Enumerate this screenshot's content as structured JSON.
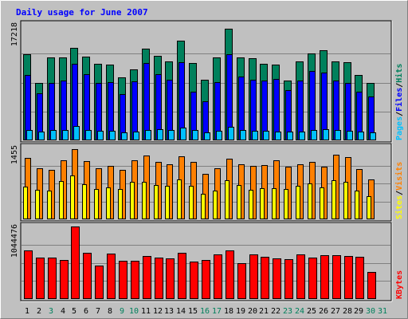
{
  "chart_data": {
    "type": "bar",
    "title": "Daily usage for June 2007",
    "categories": [
      "1",
      "2",
      "3",
      "4",
      "5",
      "6",
      "7",
      "8",
      "9",
      "10",
      "11",
      "12",
      "13",
      "14",
      "15",
      "16",
      "17",
      "18",
      "19",
      "20",
      "21",
      "22",
      "23",
      "24",
      "25",
      "26",
      "27",
      "28",
      "29",
      "30",
      "31"
    ],
    "weekend_days": [
      "3",
      "9",
      "10",
      "16",
      "17",
      "23",
      "24",
      "30",
      "31"
    ],
    "panels": [
      {
        "name": "hits-files-pages",
        "ymax_label": "17218",
        "ylim": [
          0,
          17218
        ],
        "side_labels": [
          "Pages",
          "Files",
          "Hits"
        ],
        "series": [
          {
            "name": "Hits",
            "color": "#00805c",
            "values": [
              12800,
              8600,
              12300,
              12400,
              13800,
              12500,
              11400,
              11300,
              9400,
              10600,
              13700,
              12600,
              11800,
              14800,
              11500,
              9000,
              12300,
              16600,
              12400,
              12200,
              11400,
              11300,
              8900,
              11800,
              12900,
              13400,
              11800,
              11600,
              9700,
              8500,
              0
            ]
          },
          {
            "name": "Files",
            "color": "#0000ff",
            "values": [
              9700,
              7000,
              8500,
              8900,
              11400,
              9800,
              8600,
              8700,
              6900,
              8800,
              11500,
              9900,
              9000,
              11600,
              7200,
              5800,
              8700,
              12800,
              9500,
              9000,
              8900,
              9100,
              7500,
              8900,
              10300,
              10100,
              8900,
              8600,
              7200,
              6500,
              0
            ]
          },
          {
            "name": "Pages",
            "color": "#00c0ff",
            "values": [
              1500,
              1300,
              1600,
              1500,
              2100,
              1600,
              1400,
              1400,
              1200,
              1300,
              1600,
              1700,
              1500,
              1900,
              1600,
              1200,
              1400,
              2000,
              1500,
              1400,
              1400,
              1300,
              1300,
              1300,
              1500,
              1700,
              1500,
              1400,
              1300,
              1200,
              0
            ]
          }
        ]
      },
      {
        "name": "visits-sites",
        "ymax_label": "1455",
        "ylim": [
          0,
          1455
        ],
        "side_labels": [
          "Sites",
          "Visits"
        ],
        "series": [
          {
            "name": "Visits",
            "color": "#ff8000",
            "values": [
              1245,
              1030,
              1010,
              1195,
              1415,
              1180,
              1040,
              1080,
              1010,
              1200,
              1290,
              1170,
              1120,
              1280,
              1170,
              920,
              1030,
              1230,
              1120,
              1080,
              1100,
              1190,
              1060,
              1120,
              1170,
              1070,
              1315,
              1265,
              1025,
              815,
              0
            ]
          },
          {
            "name": "Sites",
            "color": "#ffff00",
            "values": [
              655,
              595,
              575,
              775,
              895,
              710,
              620,
              640,
              610,
              760,
              765,
              690,
              685,
              810,
              685,
              510,
              580,
              790,
              690,
              600,
              630,
              630,
              610,
              680,
              730,
              640,
              790,
              760,
              590,
              470,
              0
            ]
          }
        ]
      },
      {
        "name": "kbytes",
        "ymax_label": "1044476",
        "ylim": [
          0,
          1044476
        ],
        "side_labels": [
          "KBytes"
        ],
        "series": [
          {
            "name": "KBytes",
            "color": "#ff0000",
            "values": [
              695000,
              600000,
              600000,
              565000,
              1044476,
              660000,
              480000,
              650000,
              555000,
              555000,
              615000,
              595000,
              590000,
              660000,
              540000,
              565000,
              645000,
              705000,
              520000,
              640000,
              610000,
              585000,
              570000,
              640000,
              595000,
              630000,
              635000,
              625000,
              610000,
              390000,
              0
            ]
          }
        ]
      }
    ],
    "colors": {
      "background": "#c0c0c0",
      "frame": "#000000",
      "grid": "#808080",
      "title": "#0000ff",
      "weekday_label": "#000000",
      "weekend_label": "#00805c",
      "axis_value": "#000000"
    }
  }
}
